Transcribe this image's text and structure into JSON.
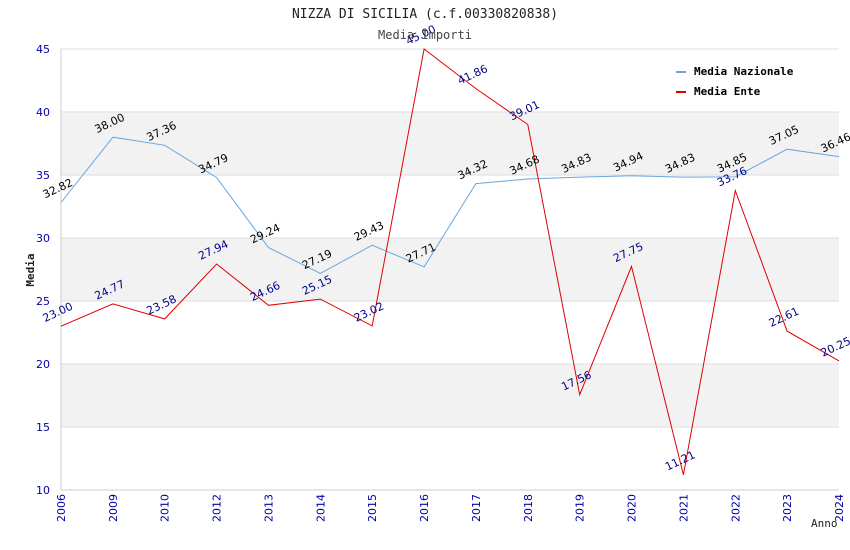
{
  "chart_data": {
    "type": "line",
    "title": "NIZZA DI SICILIA (c.f.00330820838)",
    "subtitle": "Media Importi",
    "xlabel": "Anno",
    "ylabel": "Media",
    "ylim": [
      10,
      45
    ],
    "yticks": [
      10,
      15,
      20,
      25,
      30,
      35,
      40,
      45
    ],
    "ytick_labels": [
      "10",
      "15",
      "20",
      "25",
      "30",
      "35",
      "40",
      "45"
    ],
    "categories": [
      "2006",
      "2009",
      "2010",
      "2012",
      "2013",
      "2014",
      "2015",
      "2016",
      "2017",
      "2018",
      "2019",
      "2020",
      "2021",
      "2022",
      "2023",
      "2024"
    ],
    "legend_position": "top-right",
    "series": [
      {
        "name": "Media Nazionale",
        "color": "#6aa6e0",
        "label_color": "#000000",
        "values": [
          32.82,
          38.0,
          37.36,
          34.79,
          29.24,
          27.19,
          29.43,
          27.71,
          34.32,
          34.68,
          34.83,
          34.94,
          34.83,
          34.85,
          37.05,
          36.46
        ],
        "labels": [
          "32.82",
          "38.00",
          "37.36",
          "34.79",
          "29.24",
          "27.19",
          "29.43",
          "27.71",
          "34.32",
          "34.68",
          "34.83",
          "34.94",
          "34.83",
          "34.85",
          "37.05",
          "36.46"
        ]
      },
      {
        "name": "Media Ente",
        "color": "#e00000",
        "label_color": "#00008b",
        "values": [
          23.0,
          24.77,
          23.58,
          27.94,
          24.66,
          25.15,
          23.02,
          45.0,
          41.86,
          39.01,
          17.56,
          27.75,
          11.21,
          33.76,
          22.61,
          20.25
        ],
        "labels": [
          "23.00",
          "24.77",
          "23.58",
          "27.94",
          "24.66",
          "25.15",
          "23.02",
          "45.00",
          "41.86",
          "39.01",
          "17.56",
          "27.75",
          "11.21",
          "33.76",
          "22.61",
          "20.25"
        ]
      }
    ],
    "colors": {
      "band": "#f2f2f2",
      "grid": "#dddddd",
      "axis": "#cccccc",
      "tick_text": "#0000aa",
      "title_text": "#222222",
      "subtitle_text": "#444444"
    }
  }
}
